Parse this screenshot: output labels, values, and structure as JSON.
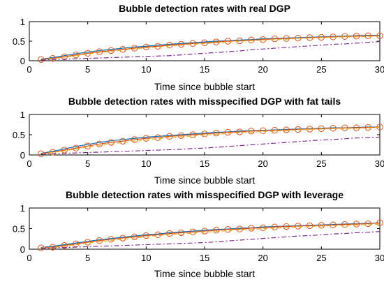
{
  "chart_data": [
    {
      "type": "line",
      "title": "Bubble detection rates with real DGP",
      "xlabel": "Time since bubble start",
      "ylabel": "",
      "xlim": [
        0,
        30
      ],
      "ylim": [
        0,
        1
      ],
      "xticks": [
        0,
        5,
        10,
        15,
        20,
        25,
        30
      ],
      "yticks": [
        0,
        0.5,
        1
      ],
      "grid": false,
      "x": [
        1,
        2,
        3,
        4,
        5,
        6,
        7,
        8,
        9,
        10,
        11,
        12,
        13,
        14,
        15,
        16,
        17,
        18,
        19,
        20,
        21,
        22,
        23,
        24,
        25,
        26,
        27,
        28,
        29,
        30
      ],
      "series": [
        {
          "style": "solid",
          "color": "#0072BD",
          "marker": "none",
          "values": [
            0.04,
            0.08,
            0.13,
            0.18,
            0.22,
            0.26,
            0.29,
            0.32,
            0.35,
            0.37,
            0.4,
            0.42,
            0.44,
            0.46,
            0.48,
            0.5,
            0.51,
            0.53,
            0.54,
            0.56,
            0.57,
            0.58,
            0.59,
            0.6,
            0.61,
            0.62,
            0.63,
            0.64,
            0.65,
            0.65
          ]
        },
        {
          "style": "solid",
          "color": "#D95319",
          "marker": "circle",
          "values": [
            0.03,
            0.06,
            0.1,
            0.15,
            0.19,
            0.23,
            0.26,
            0.29,
            0.32,
            0.35,
            0.37,
            0.4,
            0.42,
            0.44,
            0.46,
            0.48,
            0.5,
            0.51,
            0.53,
            0.54,
            0.56,
            0.57,
            0.58,
            0.59,
            0.6,
            0.61,
            0.62,
            0.63,
            0.64,
            0.64
          ]
        },
        {
          "style": "dashed",
          "color": "#EDB120",
          "marker": "none",
          "values": [
            0.03,
            0.05,
            0.09,
            0.13,
            0.17,
            0.21,
            0.24,
            0.27,
            0.3,
            0.33,
            0.35,
            0.38,
            0.4,
            0.42,
            0.44,
            0.46,
            0.48,
            0.5,
            0.51,
            0.53,
            0.54,
            0.55,
            0.57,
            0.58,
            0.59,
            0.6,
            0.61,
            0.61,
            0.62,
            0.63
          ]
        },
        {
          "style": "dashdot",
          "color": "#7E2F8E",
          "marker": "none",
          "values": [
            0.02,
            0.03,
            0.04,
            0.05,
            0.06,
            0.07,
            0.08,
            0.09,
            0.1,
            0.11,
            0.12,
            0.13,
            0.15,
            0.17,
            0.19,
            0.21,
            0.23,
            0.25,
            0.28,
            0.3,
            0.32,
            0.34,
            0.36,
            0.38,
            0.4,
            0.42,
            0.43,
            0.45,
            0.47,
            0.49
          ]
        }
      ]
    },
    {
      "type": "line",
      "title": "Bubble detection rates with misspecified DGP with fat tails",
      "xlabel": "Time since bubble start",
      "ylabel": "",
      "xlim": [
        0,
        30
      ],
      "ylim": [
        0,
        1
      ],
      "xticks": [
        0,
        5,
        10,
        15,
        20,
        25,
        30
      ],
      "yticks": [
        0,
        0.5,
        1
      ],
      "grid": false,
      "x": [
        1,
        2,
        3,
        4,
        5,
        6,
        7,
        8,
        9,
        10,
        11,
        12,
        13,
        14,
        15,
        16,
        17,
        18,
        19,
        20,
        21,
        22,
        23,
        24,
        25,
        26,
        27,
        28,
        29,
        30
      ],
      "series": [
        {
          "style": "solid",
          "color": "#0072BD",
          "marker": "none",
          "values": [
            0.04,
            0.09,
            0.15,
            0.21,
            0.26,
            0.31,
            0.35,
            0.38,
            0.41,
            0.44,
            0.46,
            0.48,
            0.5,
            0.52,
            0.54,
            0.56,
            0.57,
            0.59,
            0.6,
            0.61,
            0.62,
            0.63,
            0.64,
            0.65,
            0.66,
            0.67,
            0.67,
            0.68,
            0.69,
            0.69
          ]
        },
        {
          "style": "solid",
          "color": "#D95319",
          "marker": "circle",
          "values": [
            0.03,
            0.07,
            0.12,
            0.17,
            0.22,
            0.27,
            0.31,
            0.34,
            0.38,
            0.41,
            0.43,
            0.46,
            0.48,
            0.5,
            0.52,
            0.54,
            0.56,
            0.57,
            0.59,
            0.6,
            0.61,
            0.62,
            0.63,
            0.64,
            0.65,
            0.66,
            0.67,
            0.67,
            0.68,
            0.69
          ]
        },
        {
          "style": "dashed",
          "color": "#EDB120",
          "marker": "none",
          "values": [
            0.03,
            0.06,
            0.1,
            0.15,
            0.19,
            0.23,
            0.27,
            0.31,
            0.34,
            0.37,
            0.4,
            0.43,
            0.45,
            0.47,
            0.49,
            0.51,
            0.53,
            0.55,
            0.56,
            0.58,
            0.59,
            0.6,
            0.62,
            0.63,
            0.64,
            0.65,
            0.65,
            0.66,
            0.67,
            0.68
          ]
        },
        {
          "style": "dashdot",
          "color": "#7E2F8E",
          "marker": "none",
          "values": [
            0.02,
            0.03,
            0.04,
            0.05,
            0.06,
            0.07,
            0.08,
            0.09,
            0.1,
            0.11,
            0.12,
            0.13,
            0.14,
            0.16,
            0.17,
            0.19,
            0.21,
            0.23,
            0.25,
            0.27,
            0.29,
            0.31,
            0.33,
            0.35,
            0.37,
            0.38,
            0.4,
            0.42,
            0.43,
            0.44
          ]
        }
      ]
    },
    {
      "type": "line",
      "title": "Bubble detection rates with misspecified DGP with leverage",
      "xlabel": "Time since bubble start",
      "ylabel": "",
      "xlim": [
        0,
        30
      ],
      "ylim": [
        0,
        1
      ],
      "xticks": [
        0,
        5,
        10,
        15,
        20,
        25,
        30
      ],
      "yticks": [
        0,
        0.5,
        1
      ],
      "grid": false,
      "x": [
        1,
        2,
        3,
        4,
        5,
        6,
        7,
        8,
        9,
        10,
        11,
        12,
        13,
        14,
        15,
        16,
        17,
        18,
        19,
        20,
        21,
        22,
        23,
        24,
        25,
        26,
        27,
        28,
        29,
        30
      ],
      "series": [
        {
          "style": "solid",
          "color": "#0072BD",
          "marker": "none",
          "values": [
            0.04,
            0.07,
            0.11,
            0.15,
            0.19,
            0.23,
            0.26,
            0.29,
            0.32,
            0.35,
            0.37,
            0.4,
            0.42,
            0.44,
            0.46,
            0.48,
            0.49,
            0.51,
            0.52,
            0.54,
            0.55,
            0.56,
            0.57,
            0.58,
            0.59,
            0.6,
            0.61,
            0.62,
            0.63,
            0.64
          ]
        },
        {
          "style": "solid",
          "color": "#D95319",
          "marker": "circle",
          "values": [
            0.03,
            0.05,
            0.09,
            0.13,
            0.17,
            0.21,
            0.24,
            0.27,
            0.3,
            0.33,
            0.35,
            0.38,
            0.4,
            0.42,
            0.44,
            0.46,
            0.48,
            0.49,
            0.51,
            0.52,
            0.54,
            0.55,
            0.56,
            0.57,
            0.58,
            0.59,
            0.6,
            0.61,
            0.62,
            0.64
          ]
        },
        {
          "style": "dashed",
          "color": "#EDB120",
          "marker": "none",
          "values": [
            0.03,
            0.04,
            0.07,
            0.11,
            0.15,
            0.18,
            0.21,
            0.24,
            0.27,
            0.3,
            0.33,
            0.35,
            0.37,
            0.39,
            0.41,
            0.43,
            0.45,
            0.47,
            0.48,
            0.5,
            0.51,
            0.52,
            0.54,
            0.55,
            0.56,
            0.57,
            0.58,
            0.59,
            0.6,
            0.61
          ]
        },
        {
          "style": "dashdot",
          "color": "#7E2F8E",
          "marker": "none",
          "values": [
            0.02,
            0.03,
            0.04,
            0.05,
            0.06,
            0.07,
            0.08,
            0.09,
            0.1,
            0.11,
            0.12,
            0.13,
            0.14,
            0.15,
            0.16,
            0.18,
            0.2,
            0.22,
            0.24,
            0.26,
            0.28,
            0.3,
            0.32,
            0.33,
            0.35,
            0.37,
            0.38,
            0.4,
            0.41,
            0.43
          ]
        }
      ]
    }
  ]
}
